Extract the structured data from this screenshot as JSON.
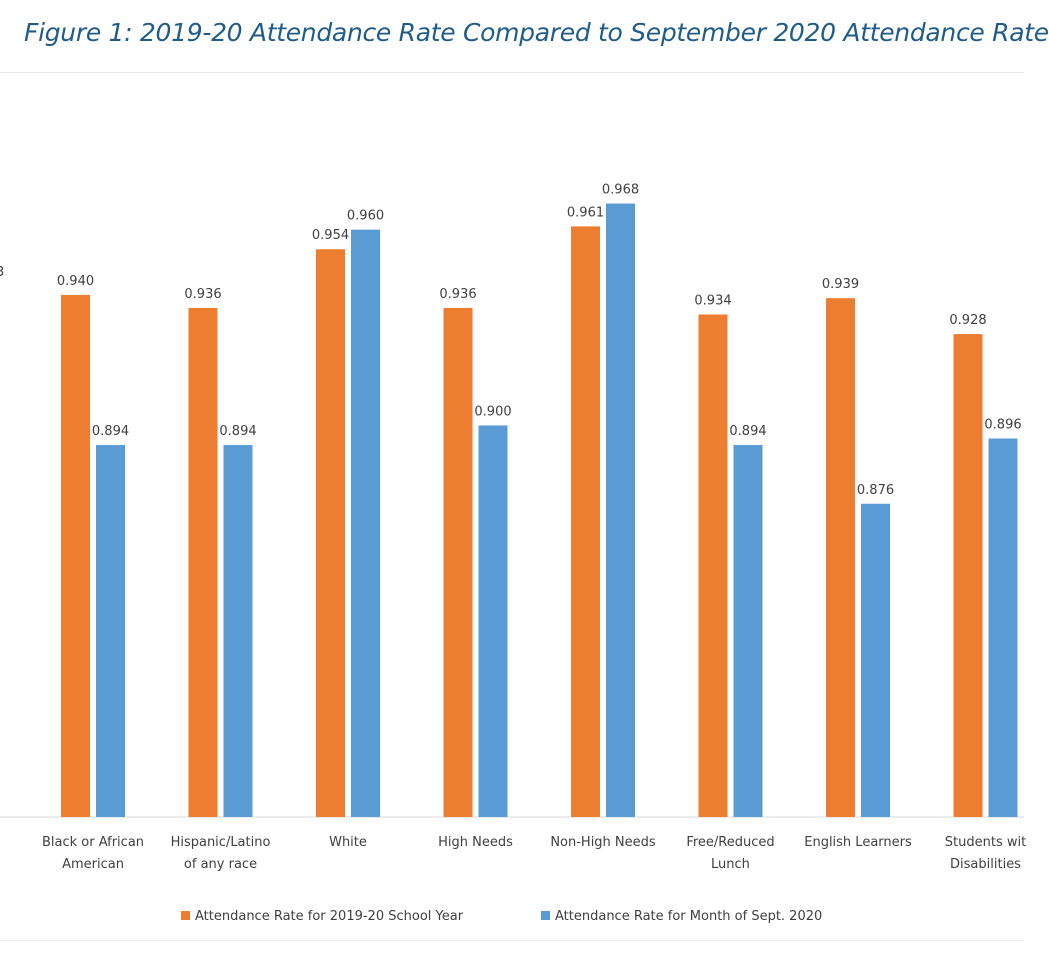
{
  "figure": {
    "title": "Figure 1: 2019-20 Attendance Rate Compared to September 2020 Attendance Rate"
  },
  "chart_data": {
    "type": "bar",
    "categories": [
      [
        "Black or African",
        "American"
      ],
      [
        "Hispanic/Latino",
        "of any race"
      ],
      [
        "White"
      ],
      [
        "High Needs"
      ],
      [
        "Non-High Needs"
      ],
      [
        "Free/Reduced",
        "Lunch"
      ],
      [
        "English Learners"
      ],
      [
        "Students wit",
        "Disabilities"
      ]
    ],
    "series": [
      {
        "name": "Attendance Rate for 2019-20 School Year",
        "color": "#ed7d31",
        "values": [
          0.94,
          0.936,
          0.954,
          0.936,
          0.961,
          0.934,
          0.939,
          0.928
        ],
        "labels": [
          "0.940",
          "0.936",
          "0.954",
          "0.936",
          "0.961",
          "0.934",
          "0.939",
          "0.928"
        ]
      },
      {
        "name": "Attendance Rate for Month of Sept. 2020",
        "color": "#5b9bd5",
        "values": [
          0.894,
          0.894,
          0.96,
          0.9,
          0.968,
          0.894,
          0.876,
          0.896
        ],
        "labels": [
          "0.894",
          "0.894",
          "0.960",
          "0.900",
          "0.968",
          "0.894",
          "0.876",
          "0.896"
        ]
      }
    ],
    "partial_left_label": "3",
    "ylim": [
      0.78,
      0.98
    ],
    "grid": false,
    "legend_position": "bottom"
  }
}
